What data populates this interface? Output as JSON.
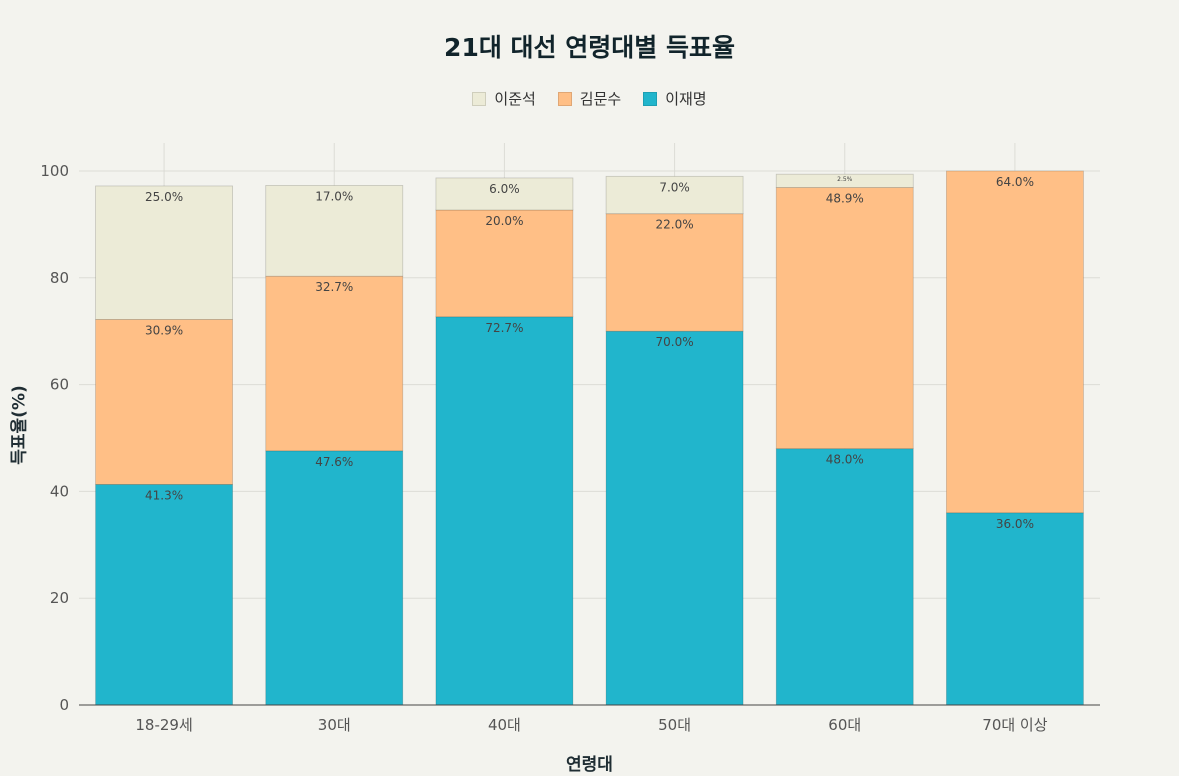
{
  "chart_data": {
    "type": "bar",
    "stacked": true,
    "title": "21대 대선 연령대별 득표율",
    "xlabel": "연령대",
    "ylabel": "득표율(%)",
    "ylim": [
      0,
      100
    ],
    "yticks": [
      0,
      20,
      40,
      60,
      80,
      100
    ],
    "grid": true,
    "legend_position": "top-center",
    "categories": [
      "18-29세",
      "30대",
      "40대",
      "50대",
      "60대",
      "70대 이상"
    ],
    "series": [
      {
        "name": "이재명",
        "color": "#21b5cc",
        "values": [
          41.3,
          47.6,
          72.7,
          70.0,
          48.0,
          36.0
        ],
        "labels": [
          "41.3%",
          "47.6%",
          "72.7%",
          "70.0%",
          "48.0%",
          "36.0%"
        ]
      },
      {
        "name": "김문수",
        "color": "#ffbf86",
        "values": [
          30.9,
          32.7,
          20.0,
          22.0,
          48.9,
          64.0
        ],
        "labels": [
          "30.9%",
          "32.7%",
          "20.0%",
          "22.0%",
          "48.9%",
          "64.0%"
        ]
      },
      {
        "name": "이준석",
        "color": "#ecebd7",
        "values": [
          25.0,
          17.0,
          6.0,
          7.0,
          2.5,
          0
        ],
        "labels": [
          "25.0%",
          "17.0%",
          "6.0%",
          "7.0%",
          "2.5%",
          ""
        ]
      }
    ],
    "legend_order": [
      "이준석",
      "김문수",
      "이재명"
    ]
  }
}
